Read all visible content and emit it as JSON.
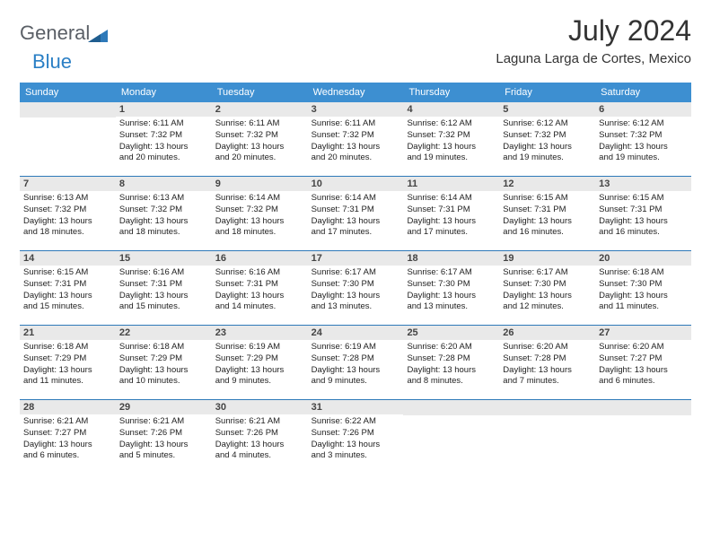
{
  "brand": {
    "general_text": "General",
    "blue_text": "Blue",
    "icon_fill": "#2e79b9"
  },
  "header": {
    "month_title": "July 2024",
    "location": "Laguna Larga de Cortes, Mexico"
  },
  "calendar": {
    "header_bg": "#3d8fd1",
    "header_text_color": "#ffffff",
    "row_border_color": "#2e79b9",
    "daynum_bg": "#e9e9e9",
    "day_names": [
      "Sunday",
      "Monday",
      "Tuesday",
      "Wednesday",
      "Thursday",
      "Friday",
      "Saturday"
    ],
    "weeks": [
      [
        {
          "day": "",
          "sunrise": "",
          "sunset": "",
          "daylight1": "",
          "daylight2": ""
        },
        {
          "day": "1",
          "sunrise": "Sunrise: 6:11 AM",
          "sunset": "Sunset: 7:32 PM",
          "daylight1": "Daylight: 13 hours",
          "daylight2": "and 20 minutes."
        },
        {
          "day": "2",
          "sunrise": "Sunrise: 6:11 AM",
          "sunset": "Sunset: 7:32 PM",
          "daylight1": "Daylight: 13 hours",
          "daylight2": "and 20 minutes."
        },
        {
          "day": "3",
          "sunrise": "Sunrise: 6:11 AM",
          "sunset": "Sunset: 7:32 PM",
          "daylight1": "Daylight: 13 hours",
          "daylight2": "and 20 minutes."
        },
        {
          "day": "4",
          "sunrise": "Sunrise: 6:12 AM",
          "sunset": "Sunset: 7:32 PM",
          "daylight1": "Daylight: 13 hours",
          "daylight2": "and 19 minutes."
        },
        {
          "day": "5",
          "sunrise": "Sunrise: 6:12 AM",
          "sunset": "Sunset: 7:32 PM",
          "daylight1": "Daylight: 13 hours",
          "daylight2": "and 19 minutes."
        },
        {
          "day": "6",
          "sunrise": "Sunrise: 6:12 AM",
          "sunset": "Sunset: 7:32 PM",
          "daylight1": "Daylight: 13 hours",
          "daylight2": "and 19 minutes."
        }
      ],
      [
        {
          "day": "7",
          "sunrise": "Sunrise: 6:13 AM",
          "sunset": "Sunset: 7:32 PM",
          "daylight1": "Daylight: 13 hours",
          "daylight2": "and 18 minutes."
        },
        {
          "day": "8",
          "sunrise": "Sunrise: 6:13 AM",
          "sunset": "Sunset: 7:32 PM",
          "daylight1": "Daylight: 13 hours",
          "daylight2": "and 18 minutes."
        },
        {
          "day": "9",
          "sunrise": "Sunrise: 6:14 AM",
          "sunset": "Sunset: 7:32 PM",
          "daylight1": "Daylight: 13 hours",
          "daylight2": "and 18 minutes."
        },
        {
          "day": "10",
          "sunrise": "Sunrise: 6:14 AM",
          "sunset": "Sunset: 7:31 PM",
          "daylight1": "Daylight: 13 hours",
          "daylight2": "and 17 minutes."
        },
        {
          "day": "11",
          "sunrise": "Sunrise: 6:14 AM",
          "sunset": "Sunset: 7:31 PM",
          "daylight1": "Daylight: 13 hours",
          "daylight2": "and 17 minutes."
        },
        {
          "day": "12",
          "sunrise": "Sunrise: 6:15 AM",
          "sunset": "Sunset: 7:31 PM",
          "daylight1": "Daylight: 13 hours",
          "daylight2": "and 16 minutes."
        },
        {
          "day": "13",
          "sunrise": "Sunrise: 6:15 AM",
          "sunset": "Sunset: 7:31 PM",
          "daylight1": "Daylight: 13 hours",
          "daylight2": "and 16 minutes."
        }
      ],
      [
        {
          "day": "14",
          "sunrise": "Sunrise: 6:15 AM",
          "sunset": "Sunset: 7:31 PM",
          "daylight1": "Daylight: 13 hours",
          "daylight2": "and 15 minutes."
        },
        {
          "day": "15",
          "sunrise": "Sunrise: 6:16 AM",
          "sunset": "Sunset: 7:31 PM",
          "daylight1": "Daylight: 13 hours",
          "daylight2": "and 15 minutes."
        },
        {
          "day": "16",
          "sunrise": "Sunrise: 6:16 AM",
          "sunset": "Sunset: 7:31 PM",
          "daylight1": "Daylight: 13 hours",
          "daylight2": "and 14 minutes."
        },
        {
          "day": "17",
          "sunrise": "Sunrise: 6:17 AM",
          "sunset": "Sunset: 7:30 PM",
          "daylight1": "Daylight: 13 hours",
          "daylight2": "and 13 minutes."
        },
        {
          "day": "18",
          "sunrise": "Sunrise: 6:17 AM",
          "sunset": "Sunset: 7:30 PM",
          "daylight1": "Daylight: 13 hours",
          "daylight2": "and 13 minutes."
        },
        {
          "day": "19",
          "sunrise": "Sunrise: 6:17 AM",
          "sunset": "Sunset: 7:30 PM",
          "daylight1": "Daylight: 13 hours",
          "daylight2": "and 12 minutes."
        },
        {
          "day": "20",
          "sunrise": "Sunrise: 6:18 AM",
          "sunset": "Sunset: 7:30 PM",
          "daylight1": "Daylight: 13 hours",
          "daylight2": "and 11 minutes."
        }
      ],
      [
        {
          "day": "21",
          "sunrise": "Sunrise: 6:18 AM",
          "sunset": "Sunset: 7:29 PM",
          "daylight1": "Daylight: 13 hours",
          "daylight2": "and 11 minutes."
        },
        {
          "day": "22",
          "sunrise": "Sunrise: 6:18 AM",
          "sunset": "Sunset: 7:29 PM",
          "daylight1": "Daylight: 13 hours",
          "daylight2": "and 10 minutes."
        },
        {
          "day": "23",
          "sunrise": "Sunrise: 6:19 AM",
          "sunset": "Sunset: 7:29 PM",
          "daylight1": "Daylight: 13 hours",
          "daylight2": "and 9 minutes."
        },
        {
          "day": "24",
          "sunrise": "Sunrise: 6:19 AM",
          "sunset": "Sunset: 7:28 PM",
          "daylight1": "Daylight: 13 hours",
          "daylight2": "and 9 minutes."
        },
        {
          "day": "25",
          "sunrise": "Sunrise: 6:20 AM",
          "sunset": "Sunset: 7:28 PM",
          "daylight1": "Daylight: 13 hours",
          "daylight2": "and 8 minutes."
        },
        {
          "day": "26",
          "sunrise": "Sunrise: 6:20 AM",
          "sunset": "Sunset: 7:28 PM",
          "daylight1": "Daylight: 13 hours",
          "daylight2": "and 7 minutes."
        },
        {
          "day": "27",
          "sunrise": "Sunrise: 6:20 AM",
          "sunset": "Sunset: 7:27 PM",
          "daylight1": "Daylight: 13 hours",
          "daylight2": "and 6 minutes."
        }
      ],
      [
        {
          "day": "28",
          "sunrise": "Sunrise: 6:21 AM",
          "sunset": "Sunset: 7:27 PM",
          "daylight1": "Daylight: 13 hours",
          "daylight2": "and 6 minutes."
        },
        {
          "day": "29",
          "sunrise": "Sunrise: 6:21 AM",
          "sunset": "Sunset: 7:26 PM",
          "daylight1": "Daylight: 13 hours",
          "daylight2": "and 5 minutes."
        },
        {
          "day": "30",
          "sunrise": "Sunrise: 6:21 AM",
          "sunset": "Sunset: 7:26 PM",
          "daylight1": "Daylight: 13 hours",
          "daylight2": "and 4 minutes."
        },
        {
          "day": "31",
          "sunrise": "Sunrise: 6:22 AM",
          "sunset": "Sunset: 7:26 PM",
          "daylight1": "Daylight: 13 hours",
          "daylight2": "and 3 minutes."
        },
        {
          "day": "",
          "sunrise": "",
          "sunset": "",
          "daylight1": "",
          "daylight2": ""
        },
        {
          "day": "",
          "sunrise": "",
          "sunset": "",
          "daylight1": "",
          "daylight2": ""
        },
        {
          "day": "",
          "sunrise": "",
          "sunset": "",
          "daylight1": "",
          "daylight2": ""
        }
      ]
    ]
  }
}
